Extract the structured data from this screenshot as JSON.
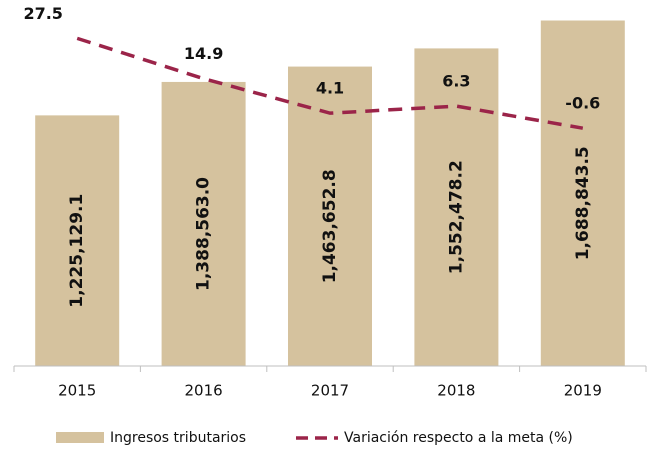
{
  "chart_data": {
    "type": "bar-line",
    "categories": [
      "2015",
      "2016",
      "2017",
      "2018",
      "2019"
    ],
    "series": [
      {
        "name": "Ingresos tributarios",
        "type": "bar",
        "color": "#d5c29e",
        "values": [
          1225129.1,
          1388563.0,
          1463652.8,
          1552478.2,
          1688843.5
        ],
        "value_labels": [
          "1,225,129.1",
          "1,388,563.0",
          "1,463,652.8",
          "1,552,478.2",
          "1,688,843.5"
        ]
      },
      {
        "name": "Variación respecto a la meta (%)",
        "type": "line",
        "axis": "y2",
        "color": "#9b2449",
        "values": [
          27.5,
          14.9,
          4.1,
          6.3,
          -0.6
        ]
      }
    ],
    "ylim": [
      0,
      1750000
    ],
    "y2lim": [
      -75,
      37
    ],
    "legend": "bottom"
  }
}
